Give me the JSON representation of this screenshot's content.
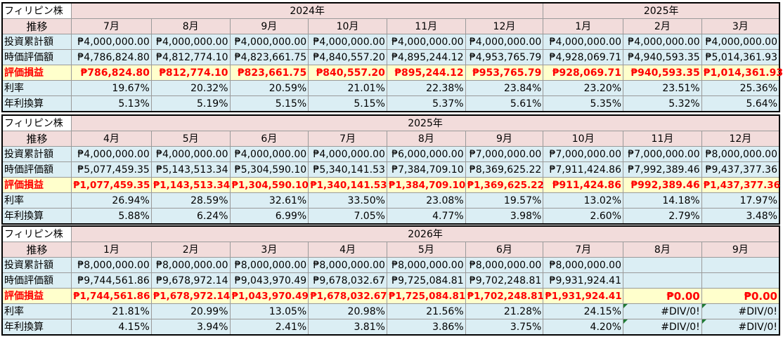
{
  "labels": {
    "stock": "フィリピン株",
    "trend": "推移",
    "invest": "投資累計額",
    "value": "時価評価額",
    "pnl": "評価損益",
    "rate": "利率",
    "annual": "年利換算"
  },
  "table1": {
    "year_a": "2024年",
    "year_b": "2025年",
    "months": [
      "7月",
      "8月",
      "9月",
      "10月",
      "11月",
      "12月",
      "1月",
      "2月",
      "3月"
    ],
    "invest": [
      "₱4,000,000.00",
      "₱4,000,000.00",
      "₱4,000,000.00",
      "₱4,000,000.00",
      "₱4,000,000.00",
      "₱4,000,000.00",
      "₱4,000,000.00",
      "₱4,000,000.00",
      "₱4,000,000.00"
    ],
    "value": [
      "₱4,786,824.80",
      "₱4,812,774.10",
      "₱4,823,661.75",
      "₱4,840,557.20",
      "₱4,895,244.12",
      "₱4,953,765.79",
      "₱4,928,069.71",
      "₱4,940,593.35",
      "₱5,014,361.93"
    ],
    "pnl": [
      "₱786,824.80",
      "₱812,774.10",
      "₱823,661.75",
      "₱840,557.20",
      "₱895,244.12",
      "₱953,765.79",
      "₱928,069.71",
      "₱940,593.35",
      "₱1,014,361.93"
    ],
    "rate": [
      "19.67%",
      "20.32%",
      "20.59%",
      "21.01%",
      "22.38%",
      "23.84%",
      "23.20%",
      "23.51%",
      "25.36%"
    ],
    "annual": [
      "5.13%",
      "5.19%",
      "5.15%",
      "5.15%",
      "5.37%",
      "5.61%",
      "5.35%",
      "5.32%",
      "5.64%"
    ]
  },
  "table2": {
    "year": "2025年",
    "months": [
      "4月",
      "5月",
      "6月",
      "7月",
      "8月",
      "9月",
      "10月",
      "11月",
      "12月"
    ],
    "invest": [
      "₱4,000,000.00",
      "₱4,000,000.00",
      "₱4,000,000.00",
      "₱4,000,000.00",
      "₱6,000,000.00",
      "₱7,000,000.00",
      "₱7,000,000.00",
      "₱7,000,000.00",
      "₱8,000,000.00"
    ],
    "value": [
      "₱5,077,459.35",
      "₱5,143,513.34",
      "₱5,304,590.10",
      "₱5,340,141.53",
      "₱7,384,709.10",
      "₱8,369,625.22",
      "₱7,911,424.86",
      "₱7,992,389.46",
      "₱9,437,377.36"
    ],
    "pnl": [
      "₱1,077,459.35",
      "₱1,143,513.34",
      "₱1,304,590.10",
      "₱1,340,141.53",
      "₱1,384,709.10",
      "₱1,369,625.22",
      "₱911,424.86",
      "₱992,389.46",
      "₱1,437,377.36"
    ],
    "rate": [
      "26.94%",
      "28.59%",
      "32.61%",
      "33.50%",
      "23.08%",
      "19.57%",
      "13.02%",
      "14.18%",
      "17.97%"
    ],
    "annual": [
      "5.88%",
      "6.24%",
      "6.99%",
      "7.05%",
      "4.77%",
      "3.98%",
      "2.60%",
      "2.79%",
      "3.48%"
    ]
  },
  "table3": {
    "year": "2026年",
    "months": [
      "1月",
      "2月",
      "3月",
      "4月",
      "5月",
      "6月",
      "7月",
      "8月",
      "9月"
    ],
    "invest": [
      "₱8,000,000.00",
      "₱8,000,000.00",
      "₱8,000,000.00",
      "₱8,000,000.00",
      "₱8,000,000.00",
      "₱8,000,000.00",
      "₱8,000,000.00",
      "",
      ""
    ],
    "value": [
      "₱9,744,561.86",
      "₱9,678,972.14",
      "₱9,043,970.49",
      "₱9,678,032.67",
      "₱9,725,084.81",
      "₱9,702,248.81",
      "₱9,931,924.41",
      "",
      ""
    ],
    "pnl": [
      "₱1,744,561.86",
      "₱1,678,972.14",
      "₱1,043,970.49",
      "₱1,678,032.67",
      "₱1,725,084.81",
      "₱1,702,248.81",
      "₱1,931,924.41",
      "₱0.00",
      "₱0.00"
    ],
    "rate": [
      "21.81%",
      "20.99%",
      "13.05%",
      "20.98%",
      "21.56%",
      "21.28%",
      "24.15%",
      "#DIV/0!",
      "#DIV/0!"
    ],
    "annual": [
      "4.15%",
      "3.94%",
      "2.41%",
      "3.81%",
      "3.86%",
      "3.75%",
      "4.20%",
      "#DIV/0!",
      "#DIV/0!"
    ]
  }
}
